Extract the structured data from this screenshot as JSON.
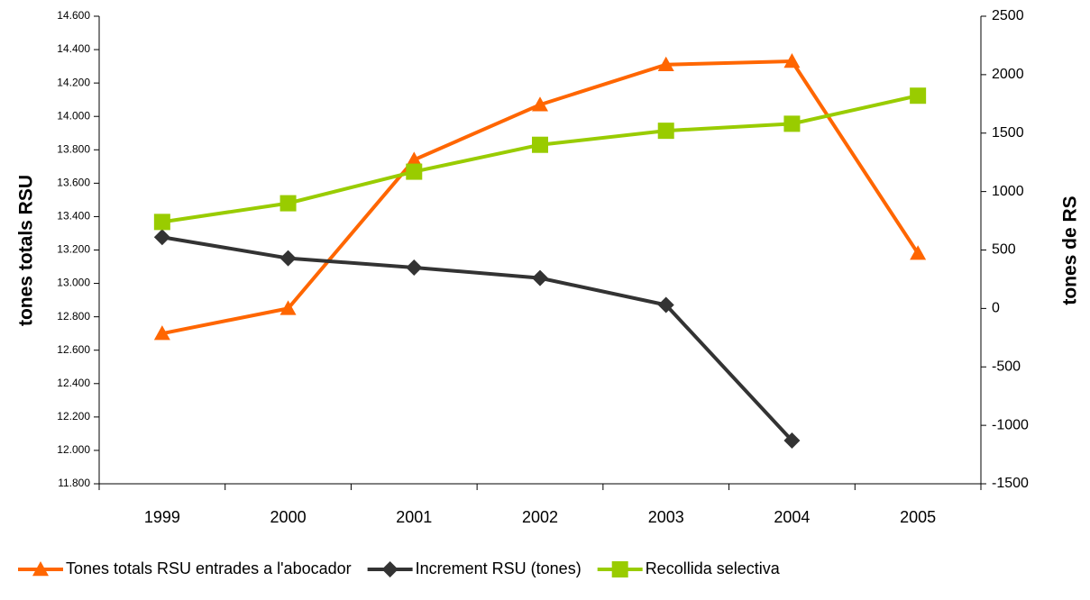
{
  "chart_data": {
    "type": "line",
    "categories": [
      "1999",
      "2000",
      "2001",
      "2002",
      "2003",
      "2004",
      "2005"
    ],
    "ylabel": "tones totals RSU",
    "y2label": "tones de RS",
    "ylim": [
      11800,
      14600
    ],
    "yticks": [
      {
        "value": 11800,
        "label": "11.800"
      },
      {
        "value": 12000,
        "label": "12.000"
      },
      {
        "value": 12200,
        "label": "12.200"
      },
      {
        "value": 12400,
        "label": "12.400"
      },
      {
        "value": 12600,
        "label": "12.600"
      },
      {
        "value": 12800,
        "label": "12.800"
      },
      {
        "value": 13000,
        "label": "13.000"
      },
      {
        "value": 13200,
        "label": "13.200"
      },
      {
        "value": 13400,
        "label": "13.400"
      },
      {
        "value": 13600,
        "label": "13.600"
      },
      {
        "value": 13800,
        "label": "13.800"
      },
      {
        "value": 14000,
        "label": "14.000"
      },
      {
        "value": 14200,
        "label": "14.200"
      },
      {
        "value": 14400,
        "label": "14.400"
      },
      {
        "value": 14600,
        "label": "14.600"
      }
    ],
    "y2lim": [
      -1500,
      2500
    ],
    "y2ticks": [
      -1500,
      -1000,
      -500,
      0,
      500,
      1000,
      1500,
      2000,
      2500
    ],
    "legend": "bottom",
    "series": [
      {
        "name": "Tones totals RSU entrades a l'abocador",
        "color": "#ff6600",
        "marker": "triangle",
        "values": [
          12700,
          12850,
          13740,
          14070,
          14310,
          14330,
          13180
        ]
      },
      {
        "name": "Increment RSU (tones)",
        "color": "#333333",
        "marker": "diamond",
        "axis": "y2",
        "values": [
          610,
          430,
          350,
          260,
          30,
          -1130,
          null
        ]
      },
      {
        "name": "Recollida selectiva",
        "color": "#99cc00",
        "marker": "square",
        "axis": "y2",
        "values": [
          740,
          900,
          1170,
          1400,
          1520,
          1580,
          1820
        ]
      }
    ]
  }
}
